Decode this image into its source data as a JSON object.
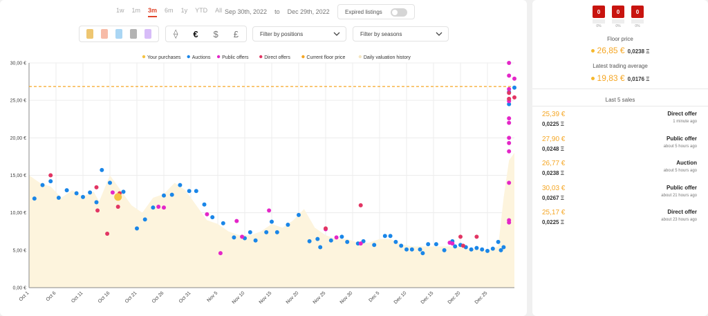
{
  "time_ranges": [
    "1w",
    "1m",
    "3m",
    "6m",
    "1y",
    "YTD",
    "All"
  ],
  "active_range": "3m",
  "date_from": "Sep 30th, 2022",
  "date_to_word": "to",
  "date_to": "Dec 29th, 2022",
  "expired_listings": {
    "label": "Expired listings",
    "enabled": false
  },
  "marketplace_filters": [
    {
      "name": "marketplace-1",
      "color": "#e8b341"
    },
    {
      "name": "marketplace-2",
      "color": "#f4a48a"
    },
    {
      "name": "marketplace-3",
      "color": "#8ec8f0"
    },
    {
      "name": "marketplace-4",
      "color": "#9a9a9a"
    },
    {
      "name": "marketplace-5",
      "color": "#c9a6f5"
    }
  ],
  "currencies": [
    {
      "symbol": "⟠",
      "name": "eth"
    },
    {
      "symbol": "€",
      "name": "eur",
      "active": true
    },
    {
      "symbol": "$",
      "name": "usd"
    },
    {
      "symbol": "£",
      "name": "gbp"
    }
  ],
  "filter_positions": "Filter by positions",
  "filter_seasons": "Filter by seasons",
  "right_panel": {
    "tiles": [
      {
        "value": "0",
        "pct": "0%"
      },
      {
        "value": "0",
        "pct": "0%"
      },
      {
        "value": "0",
        "pct": "0%"
      }
    ],
    "floor_price_label": "Floor price",
    "floor_price_eur": "26,85 €",
    "floor_price_eth": "0,0238 Ξ",
    "trading_avg_label": "Latest trading average",
    "trading_avg_eur": "19,83 €",
    "trading_avg_eth": "0,0176 Ξ",
    "last_sales_label": "Last 5 sales",
    "sales": [
      {
        "price": "25,39 €",
        "eth": "0,0225 Ξ",
        "type": "Direct offer",
        "time": "1 minute ago"
      },
      {
        "price": "27,90 €",
        "eth": "0,0248 Ξ",
        "type": "Public offer",
        "time": "about 5 hours ago"
      },
      {
        "price": "26,77 €",
        "eth": "0,0238 Ξ",
        "type": "Auction",
        "time": "about 5 hours ago"
      },
      {
        "price": "30,03 €",
        "eth": "0,0267 Ξ",
        "type": "Public offer",
        "time": "about 21 hours ago"
      },
      {
        "price": "25,17 €",
        "eth": "0,0225 Ξ",
        "type": "Direct offer",
        "time": "about 23 hours ago"
      }
    ]
  },
  "chart_data": {
    "type": "scatter",
    "legend_position": "top",
    "legend": [
      {
        "name": "Your purchases",
        "color": "#f5c242"
      },
      {
        "name": "Auctions",
        "color": "#1a86e8"
      },
      {
        "name": "Public offers",
        "color": "#e426c8"
      },
      {
        "name": "Direct offers",
        "color": "#e23563"
      },
      {
        "name": "Current floor price",
        "color": "#f5a623"
      },
      {
        "name": "Daily valuation history",
        "color": "#f5e6c0"
      }
    ],
    "y_ticks": [
      "0,00 €",
      "5,00 €",
      "10,00 €",
      "15,00 €",
      "20,00 €",
      "25,00 €",
      "30,00 €"
    ],
    "ylim": [
      0,
      30
    ],
    "xlim": [
      0,
      90
    ],
    "x_ticks": [
      {
        "day": 0,
        "label": "Oct 1"
      },
      {
        "day": 5,
        "label": "Oct 6"
      },
      {
        "day": 10,
        "label": "Oct 11"
      },
      {
        "day": 15,
        "label": "Oct 16"
      },
      {
        "day": 20,
        "label": "Oct 21"
      },
      {
        "day": 25,
        "label": "Oct 26"
      },
      {
        "day": 30,
        "label": "Oct 31"
      },
      {
        "day": 35,
        "label": "Nov 5"
      },
      {
        "day": 40,
        "label": "Nov 10"
      },
      {
        "day": 45,
        "label": "Nov 15"
      },
      {
        "day": 50,
        "label": "Nov 20"
      },
      {
        "day": 55,
        "label": "Nov 25"
      },
      {
        "day": 60,
        "label": "Nov 30"
      },
      {
        "day": 65,
        "label": "Dec 5"
      },
      {
        "day": 70,
        "label": "Dec 10"
      },
      {
        "day": 75,
        "label": "Dec 15"
      },
      {
        "day": 80,
        "label": "Dec 20"
      },
      {
        "day": 85,
        "label": "Dec 25"
      }
    ],
    "floor_price": 26.85,
    "valuation_history": [
      [
        0,
        15
      ],
      [
        2,
        14
      ],
      [
        4,
        13.5
      ],
      [
        6,
        12
      ],
      [
        8,
        13
      ],
      [
        10,
        12.2
      ],
      [
        12,
        12.8
      ],
      [
        13,
        11.5
      ],
      [
        15,
        15
      ],
      [
        17,
        13
      ],
      [
        18,
        12
      ],
      [
        19,
        11
      ],
      [
        21,
        10
      ],
      [
        23,
        12
      ],
      [
        25,
        12.5
      ],
      [
        27,
        14
      ],
      [
        29,
        13
      ],
      [
        31,
        11
      ],
      [
        33,
        9
      ],
      [
        35,
        8.5
      ],
      [
        37,
        7.5
      ],
      [
        39,
        7
      ],
      [
        41,
        7
      ],
      [
        43,
        7.5
      ],
      [
        45,
        8.5
      ],
      [
        47,
        8
      ],
      [
        49,
        9
      ],
      [
        51,
        10.5
      ],
      [
        53,
        8
      ],
      [
        55,
        7
      ],
      [
        57,
        6.5
      ],
      [
        59,
        6.5
      ],
      [
        61,
        6
      ],
      [
        63,
        6
      ],
      [
        65,
        6.5
      ],
      [
        67,
        6.5
      ],
      [
        69,
        5.8
      ],
      [
        71,
        5.5
      ],
      [
        73,
        5.5
      ],
      [
        75,
        5.5
      ],
      [
        77,
        5.5
      ],
      [
        79,
        5.5
      ],
      [
        81,
        5.3
      ],
      [
        83,
        5.1
      ],
      [
        85,
        5
      ],
      [
        87,
        5.5
      ],
      [
        88,
        12
      ],
      [
        89,
        17
      ],
      [
        90,
        18
      ]
    ],
    "auctions": [
      [
        1,
        11.9
      ],
      [
        2.5,
        13.7
      ],
      [
        4,
        14.2
      ],
      [
        5.5,
        12
      ],
      [
        7,
        13
      ],
      [
        8.8,
        12.6
      ],
      [
        10,
        12.1
      ],
      [
        11.3,
        12.7
      ],
      [
        12.5,
        11.4
      ],
      [
        13.5,
        15.7
      ],
      [
        15,
        14
      ],
      [
        17.5,
        12.8
      ],
      [
        20,
        7.9
      ],
      [
        21.5,
        9.1
      ],
      [
        23,
        10.7
      ],
      [
        25,
        12.3
      ],
      [
        26.5,
        12.4
      ],
      [
        28,
        13.7
      ],
      [
        29.7,
        12.9
      ],
      [
        31,
        12.9
      ],
      [
        32.5,
        11.1
      ],
      [
        34,
        9.4
      ],
      [
        36,
        8.6
      ],
      [
        38,
        6.7
      ],
      [
        40,
        6.6
      ],
      [
        41,
        7.4
      ],
      [
        42,
        6.3
      ],
      [
        44,
        7.4
      ],
      [
        45,
        8.8
      ],
      [
        46,
        7.4
      ],
      [
        48,
        8.4
      ],
      [
        50,
        9.7
      ],
      [
        52,
        6.2
      ],
      [
        53.5,
        6.5
      ],
      [
        54,
        5.4
      ],
      [
        56,
        6.3
      ],
      [
        58,
        6.8
      ],
      [
        59,
        6.1
      ],
      [
        61,
        5.9
      ],
      [
        62,
        6.2
      ],
      [
        64,
        5.7
      ],
      [
        66,
        6.9
      ],
      [
        67,
        6.9
      ],
      [
        68,
        6.1
      ],
      [
        69,
        5.6
      ],
      [
        70,
        5.1
      ],
      [
        71,
        5.1
      ],
      [
        72.5,
        5.1
      ],
      [
        73,
        4.6
      ],
      [
        74,
        5.8
      ],
      [
        75.5,
        5.8
      ],
      [
        77,
        5
      ],
      [
        78.5,
        6.2
      ],
      [
        79,
        5.5
      ],
      [
        80,
        5.7
      ],
      [
        81,
        5.4
      ],
      [
        82,
        5.1
      ],
      [
        83,
        5.3
      ],
      [
        84,
        5.1
      ],
      [
        85,
        4.9
      ],
      [
        86,
        5.2
      ],
      [
        87,
        6.1
      ],
      [
        87.5,
        5
      ],
      [
        88,
        5.4
      ],
      [
        89,
        24.5
      ],
      [
        89,
        26.1
      ],
      [
        90,
        26.7
      ]
    ],
    "public_offers": [
      [
        15.5,
        12.7
      ],
      [
        24,
        10.8
      ],
      [
        25,
        10.7
      ],
      [
        33,
        9.8
      ],
      [
        35.5,
        4.6
      ],
      [
        38.5,
        8.9
      ],
      [
        39.5,
        6.8
      ],
      [
        44.5,
        10.3
      ],
      [
        55,
        7.8
      ],
      [
        57,
        6.7
      ],
      [
        61.5,
        5.9
      ],
      [
        78,
        6
      ],
      [
        78.5,
        5.9
      ],
      [
        89,
        30
      ],
      [
        89,
        28.3
      ],
      [
        89,
        26.5
      ],
      [
        89,
        25.2
      ],
      [
        89,
        24.9
      ],
      [
        89,
        22.6
      ],
      [
        89,
        22
      ],
      [
        89,
        20
      ],
      [
        89,
        19.3
      ],
      [
        89,
        18.2
      ],
      [
        89,
        14
      ],
      [
        89,
        9
      ],
      [
        89,
        8.7
      ],
      [
        90,
        27.9
      ]
    ],
    "direct_offers": [
      [
        4,
        15
      ],
      [
        12.5,
        13.4
      ],
      [
        12.7,
        10.3
      ],
      [
        14.5,
        7.2
      ],
      [
        16.5,
        10.8
      ],
      [
        16.8,
        12.6
      ],
      [
        55,
        7.9
      ],
      [
        61.5,
        11
      ],
      [
        80,
        6.8
      ],
      [
        80.5,
        5.6
      ],
      [
        83,
        6.8
      ],
      [
        89,
        25.2
      ],
      [
        89,
        26
      ],
      [
        90,
        25.4
      ]
    ],
    "your_purchases": [
      [
        16.5,
        12.1
      ]
    ]
  }
}
